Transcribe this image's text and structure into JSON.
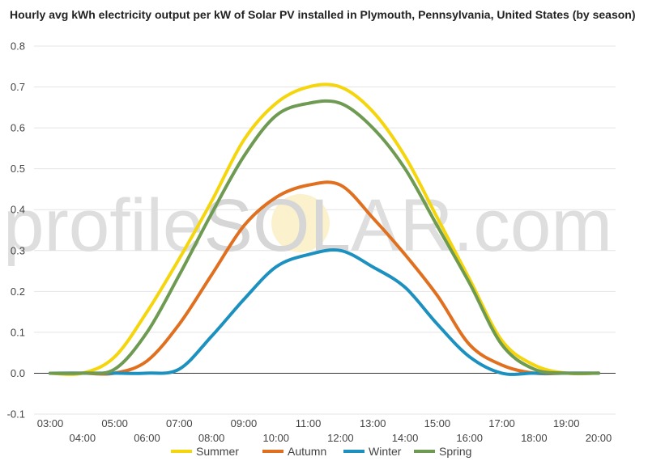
{
  "chart_data": {
    "type": "line",
    "title": "Hourly avg kWh electricity output per kW of Solar PV installed in Plymouth, Pennsylvania, United States (by season)",
    "xlabel": "",
    "ylabel": "",
    "ylim": [
      -0.1,
      0.8
    ],
    "yticks": [
      "-0.1",
      "0.0",
      "0.1",
      "0.2",
      "0.3",
      "0.4",
      "0.5",
      "0.6",
      "0.7",
      "0.8"
    ],
    "x": [
      "03:00",
      "04:00",
      "05:00",
      "06:00",
      "07:00",
      "08:00",
      "09:00",
      "10:00",
      "11:00",
      "12:00",
      "13:00",
      "14:00",
      "15:00",
      "16:00",
      "17:00",
      "18:00",
      "19:00",
      "20:00"
    ],
    "grid": true,
    "legend": "bottom",
    "series": [
      {
        "name": "Summer",
        "color": "#f5d50c",
        "values": [
          0.0,
          0.0,
          0.04,
          0.15,
          0.28,
          0.42,
          0.57,
          0.66,
          0.7,
          0.7,
          0.64,
          0.53,
          0.38,
          0.23,
          0.08,
          0.02,
          0.0,
          0.0
        ]
      },
      {
        "name": "Autumn",
        "color": "#e07020",
        "values": [
          0.0,
          0.0,
          0.0,
          0.03,
          0.12,
          0.24,
          0.36,
          0.43,
          0.46,
          0.46,
          0.38,
          0.29,
          0.19,
          0.07,
          0.02,
          0.0,
          0.0,
          0.0
        ]
      },
      {
        "name": "Winter",
        "color": "#1c91c0",
        "values": [
          0.0,
          0.0,
          0.0,
          0.0,
          0.01,
          0.09,
          0.18,
          0.26,
          0.29,
          0.3,
          0.26,
          0.21,
          0.12,
          0.04,
          0.0,
          0.0,
          0.0,
          0.0
        ]
      },
      {
        "name": "Spring",
        "color": "#6e9a52",
        "values": [
          0.0,
          0.0,
          0.01,
          0.1,
          0.24,
          0.39,
          0.53,
          0.63,
          0.66,
          0.66,
          0.6,
          0.5,
          0.36,
          0.22,
          0.07,
          0.01,
          0.0,
          0.0
        ]
      }
    ]
  },
  "watermark": {
    "left": "profile",
    "mid": "SOL",
    "right": "AR.com"
  }
}
